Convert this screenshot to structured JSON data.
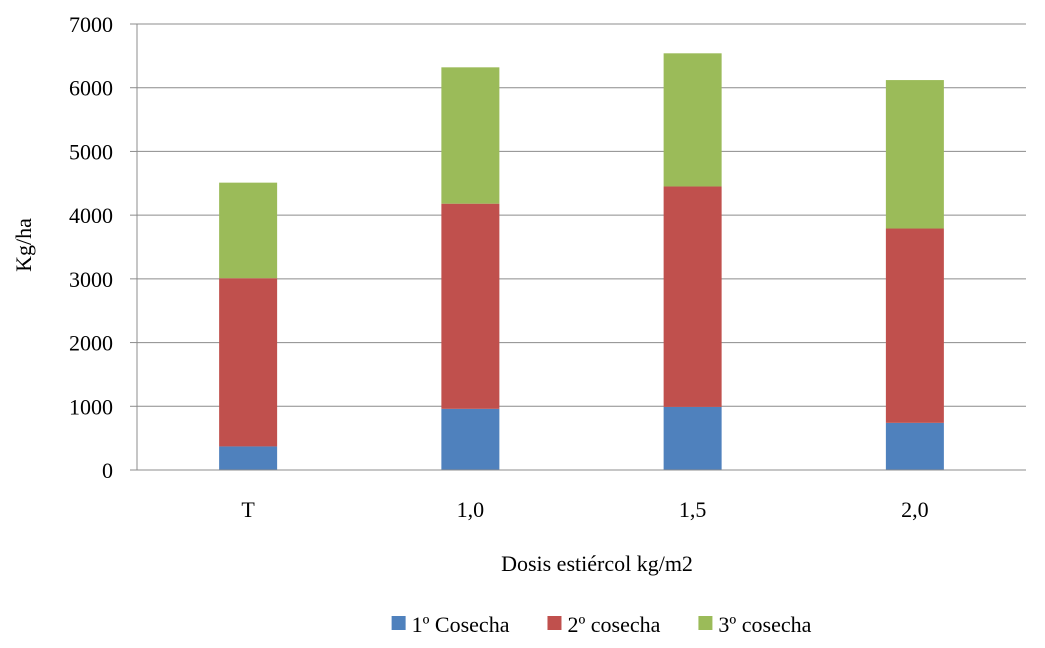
{
  "chart_data": {
    "type": "bar",
    "stacked": true,
    "title": "",
    "xlabel": "Dosis estiércol  kg/m2",
    "ylabel": "Kg/ha",
    "categories": [
      "T",
      "1,0",
      "1,5",
      "2,0"
    ],
    "ylim": [
      0,
      7000
    ],
    "yticks": [
      0,
      1000,
      2000,
      3000,
      4000,
      5000,
      6000,
      7000
    ],
    "grid": true,
    "legend_position": "bottom",
    "series": [
      {
        "name": "1º Cosecha",
        "color": "#4F81BD",
        "values": [
          370,
          960,
          990,
          740
        ]
      },
      {
        "name": "2º cosecha",
        "color": "#C0504D",
        "values": [
          2640,
          3220,
          3460,
          3050
        ]
      },
      {
        "name": "3º cosecha",
        "color": "#9BBB59",
        "values": [
          1500,
          2140,
          2090,
          2330
        ]
      }
    ]
  }
}
